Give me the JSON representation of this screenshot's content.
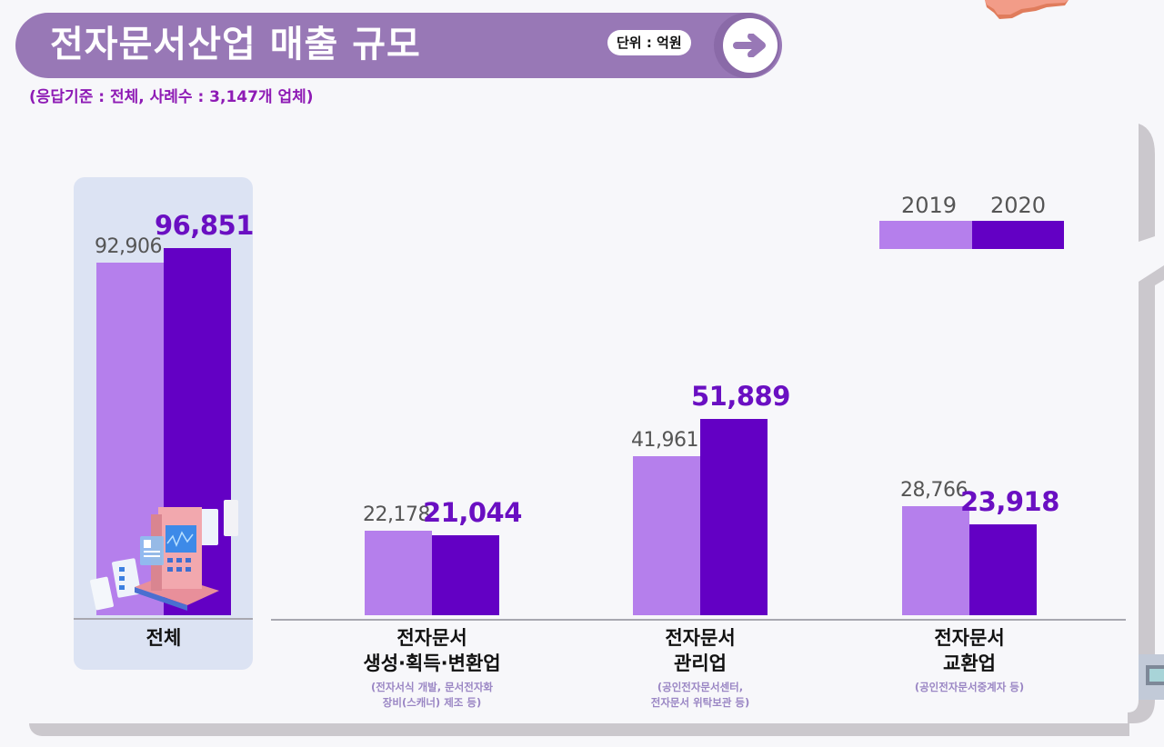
{
  "header": {
    "title": "전자문서산업 매출 규모",
    "unit_badge": "단위 : 억원",
    "arrow_icon": "arrow-right-icon",
    "subtitle": "(응답기준 : 전체, 사례수 : 3,147개 업체)"
  },
  "colors": {
    "banner": "#9878b6",
    "series_2019": "#b57fec",
    "series_2020": "#6300c4",
    "value_2020_text": "#6a0fc2",
    "highlight_panel": "#dce3f3",
    "subtitle_text": "#8e1bb5"
  },
  "chart_data": {
    "type": "bar",
    "title": "전자문서산업 매출 규모",
    "unit": "억원",
    "categories": [
      "전체",
      "전자문서 생성·획득·변환업",
      "전자문서 관리업",
      "전자문서 교환업"
    ],
    "category_labels": [
      {
        "main": "전체",
        "sub": ""
      },
      {
        "main": "전자문서\n생성·획득·변환업",
        "sub": "(전자서식 개발, 문서전자화\n장비(스캐너) 제조 등)"
      },
      {
        "main": "전자문서\n관리업",
        "sub": "(공인전자문서센터,\n전자문서 위탁보관 등)"
      },
      {
        "main": "전자문서\n교환업",
        "sub": "(공인전자문서중계자 등)"
      }
    ],
    "series": [
      {
        "name": "2019",
        "values": [
          92906,
          22178,
          41961,
          28766
        ],
        "labels": [
          "92,906",
          "22,178",
          "41,961",
          "28,766"
        ]
      },
      {
        "name": "2020",
        "values": [
          96851,
          21044,
          51889,
          23918
        ],
        "labels": [
          "96,851",
          "21,044",
          "51,889",
          "23,918"
        ]
      }
    ],
    "legend": [
      "2019",
      "2020"
    ],
    "legend_position": "top-right",
    "xlabel": "",
    "ylabel": "",
    "ylim": [
      0,
      100000
    ],
    "grid": false
  }
}
